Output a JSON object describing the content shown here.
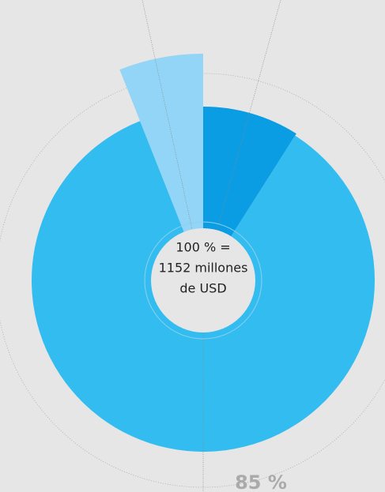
{
  "chart_data": {
    "type": "pie",
    "center_label": [
      "100 % =",
      "1152 millones",
      "de USD"
    ],
    "categories": [
      null,
      null,
      null
    ],
    "values": [
      9,
      85,
      6
    ],
    "value_labels": [
      null,
      "85 %",
      null
    ],
    "colors": [
      "#0a9de3",
      "#33bcf0",
      "#93d5f6"
    ]
  }
}
